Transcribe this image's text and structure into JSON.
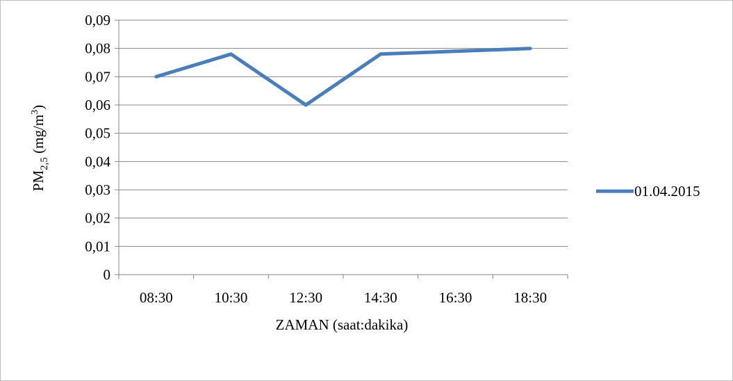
{
  "chart_data": {
    "type": "line",
    "categories": [
      "08:30",
      "10:30",
      "12:30",
      "14:30",
      "16:30",
      "18:30"
    ],
    "series": [
      {
        "name": "01.04.2015",
        "values": [
          0.07,
          0.078,
          0.06,
          0.078,
          0.079,
          0.08
        ],
        "color": "#4a7ebb"
      }
    ],
    "y_ticks": [
      "0",
      "0,01",
      "0,02",
      "0,03",
      "0,04",
      "0,05",
      "0,06",
      "0,07",
      "0,08",
      "0,09"
    ],
    "ylim": [
      0,
      0.09
    ],
    "xlabel": "ZAMAN (saat:dakika)",
    "ylabel": {
      "prefix": "PM",
      "subscript": "2,5",
      "units": " (mg/m",
      "superscript": "3",
      "close": ")"
    },
    "grid": true,
    "legend_position": "right"
  }
}
